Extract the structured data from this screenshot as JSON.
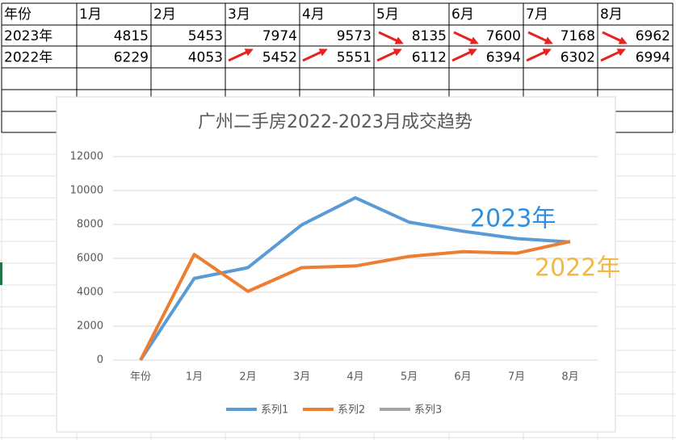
{
  "table": {
    "header": [
      "年份",
      "1月",
      "2月",
      "3月",
      "4月",
      "5月",
      "6月",
      "7月",
      "8月"
    ],
    "rows": [
      [
        "2023年",
        4815,
        5453,
        7974,
        9573,
        8135,
        7600,
        7168,
        6962
      ],
      [
        "2022年",
        6229,
        4053,
        5452,
        5551,
        6112,
        6394,
        6302,
        6994
      ]
    ]
  },
  "chart_data": {
    "type": "line",
    "title": "广州二手房2022-2023月成交趋势",
    "categories": [
      "年份",
      "1月",
      "2月",
      "3月",
      "4月",
      "5月",
      "6月",
      "7月",
      "8月"
    ],
    "series": [
      {
        "name": "系列1",
        "color": "#5b9bd5",
        "values": [
          0,
          4815,
          5453,
          7974,
          9573,
          8135,
          7600,
          7168,
          6962
        ]
      },
      {
        "name": "系列2",
        "color": "#ed7d31",
        "values": [
          0,
          6229,
          4053,
          5452,
          5551,
          6112,
          6394,
          6302,
          6994
        ]
      },
      {
        "name": "系列3",
        "color": "#a5a5a5",
        "values": [
          null,
          null,
          null,
          null,
          null,
          null,
          null,
          null,
          null
        ]
      }
    ],
    "ylim": [
      0,
      12000
    ],
    "yticks": [
      0,
      2000,
      4000,
      6000,
      8000,
      10000,
      12000
    ],
    "grid": true,
    "legend": "bottom",
    "annotations": [
      {
        "text": "2023年",
        "color": "#2e8fe0"
      },
      {
        "text": "2022年",
        "color": "#f5b740"
      }
    ]
  }
}
